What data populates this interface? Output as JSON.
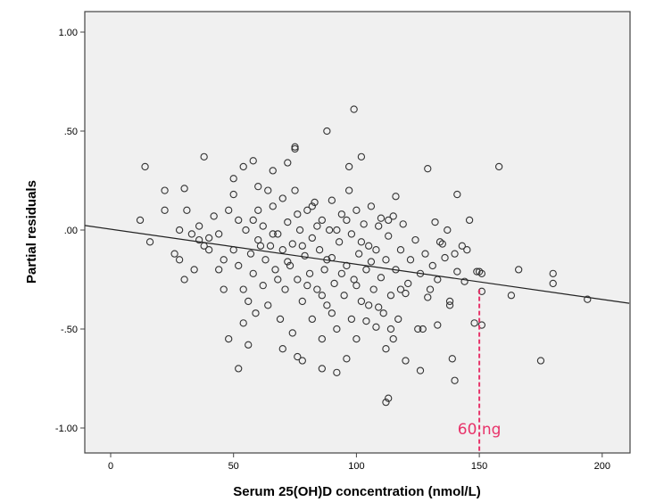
{
  "chart_data": {
    "type": "scatter",
    "title": "",
    "xlabel": "Serum 25(OH)D concentration (nmol/L)",
    "ylabel": "Partial residuals",
    "xlim": [
      -10.5,
      211
    ],
    "ylim": [
      -1.1,
      1.11
    ],
    "xticks": [
      0,
      50,
      100,
      150,
      200
    ],
    "xtick_labels": [
      "0",
      "50",
      "100",
      "150",
      "200"
    ],
    "yticks": [
      1.0,
      0.5,
      0.0,
      -0.5,
      -1.0
    ],
    "ytick_labels": [
      "1.00",
      ".50",
      ".00",
      "-.50",
      "-1.00"
    ],
    "grid": false,
    "regression_line": {
      "x": [
        -10.5,
        211
      ],
      "y": [
        0.023,
        -0.37
      ]
    },
    "annotation": {
      "label": "60 ng",
      "x": 150,
      "y_from": -0.3,
      "color": "#e8336a"
    },
    "marker_color": "#333333",
    "background": "#f0f0f0",
    "points": [
      [
        14,
        0.32
      ],
      [
        12,
        0.05
      ],
      [
        16,
        -0.06
      ],
      [
        38,
        0.37
      ],
      [
        22,
        0.2
      ],
      [
        22,
        0.1
      ],
      [
        30,
        0.21
      ],
      [
        28,
        0.0
      ],
      [
        34,
        -0.2
      ],
      [
        30,
        -0.25
      ],
      [
        26,
        -0.12
      ],
      [
        28,
        -0.15
      ],
      [
        36,
        -0.05
      ],
      [
        44,
        -0.02
      ],
      [
        48,
        -0.55
      ],
      [
        52,
        -0.7
      ],
      [
        54,
        -0.47
      ],
      [
        56,
        -0.58
      ],
      [
        58,
        0.35
      ],
      [
        50,
        0.26
      ],
      [
        54,
        0.32
      ],
      [
        60,
        0.22
      ],
      [
        66,
        0.3
      ],
      [
        75,
        0.42
      ],
      [
        75,
        0.41
      ],
      [
        88,
        0.5
      ],
      [
        99,
        0.61
      ],
      [
        102,
        0.37
      ],
      [
        97,
        0.32
      ],
      [
        72,
        0.34
      ],
      [
        86,
        -0.7
      ],
      [
        92,
        -0.72
      ],
      [
        78,
        -0.66
      ],
      [
        76,
        -0.64
      ],
      [
        112,
        -0.87
      ],
      [
        113,
        -0.85
      ],
      [
        120,
        -0.66
      ],
      [
        126,
        -0.71
      ],
      [
        140,
        -0.76
      ],
      [
        139,
        -0.65
      ],
      [
        112,
        -0.6
      ],
      [
        129,
        0.31
      ],
      [
        158,
        0.32
      ],
      [
        141,
        0.18
      ],
      [
        166,
        -0.2
      ],
      [
        163,
        -0.33
      ],
      [
        180,
        -0.22
      ],
      [
        180,
        -0.27
      ],
      [
        194,
        -0.35
      ],
      [
        175,
        -0.66
      ],
      [
        148,
        -0.47
      ],
      [
        151,
        -0.48
      ],
      [
        151,
        -0.31
      ],
      [
        150,
        -0.21
      ],
      [
        149,
        -0.21
      ],
      [
        151,
        -0.22
      ],
      [
        144,
        -0.26
      ],
      [
        127,
        -0.5
      ],
      [
        125,
        -0.5
      ],
      [
        108,
        -0.49
      ],
      [
        115,
        -0.55
      ],
      [
        100,
        -0.55
      ],
      [
        116,
        0.17
      ],
      [
        113,
        0.05
      ],
      [
        132,
        0.04
      ],
      [
        137,
        0.0
      ],
      [
        146,
        0.05
      ],
      [
        143,
        -0.08
      ],
      [
        140,
        -0.12
      ],
      [
        135,
        -0.07
      ],
      [
        138,
        -0.38
      ],
      [
        138,
        -0.36
      ],
      [
        133,
        -0.48
      ],
      [
        130,
        -0.3
      ],
      [
        120,
        -0.32
      ],
      [
        133,
        -0.25
      ],
      [
        105,
        -0.38
      ],
      [
        109,
        -0.39
      ],
      [
        31,
        0.1
      ],
      [
        33,
        -0.02
      ],
      [
        38,
        -0.08
      ],
      [
        40,
        -0.04
      ],
      [
        42,
        0.07
      ],
      [
        46,
        -0.15
      ],
      [
        44,
        -0.2
      ],
      [
        48,
        0.1
      ],
      [
        50,
        -0.1
      ],
      [
        52,
        -0.18
      ],
      [
        52,
        0.05
      ],
      [
        54,
        -0.3
      ],
      [
        55,
        0.0
      ],
      [
        57,
        -0.12
      ],
      [
        58,
        -0.22
      ],
      [
        60,
        -0.05
      ],
      [
        60,
        0.1
      ],
      [
        62,
        -0.28
      ],
      [
        62,
        0.02
      ],
      [
        63,
        -0.15
      ],
      [
        64,
        -0.38
      ],
      [
        65,
        -0.08
      ],
      [
        66,
        0.12
      ],
      [
        67,
        -0.2
      ],
      [
        68,
        -0.02
      ],
      [
        69,
        -0.45
      ],
      [
        70,
        -0.1
      ],
      [
        70,
        0.16
      ],
      [
        71,
        -0.3
      ],
      [
        72,
        0.04
      ],
      [
        73,
        -0.18
      ],
      [
        74,
        -0.52
      ],
      [
        74,
        -0.07
      ],
      [
        75,
        0.2
      ],
      [
        76,
        -0.25
      ],
      [
        77,
        0.0
      ],
      [
        78,
        -0.36
      ],
      [
        79,
        -0.13
      ],
      [
        80,
        0.1
      ],
      [
        81,
        -0.22
      ],
      [
        82,
        -0.45
      ],
      [
        82,
        -0.04
      ],
      [
        83,
        0.14
      ],
      [
        84,
        -0.3
      ],
      [
        85,
        -0.1
      ],
      [
        86,
        0.05
      ],
      [
        86,
        -0.55
      ],
      [
        87,
        -0.2
      ],
      [
        88,
        -0.38
      ],
      [
        89,
        0.0
      ],
      [
        90,
        -0.14
      ],
      [
        90,
        0.15
      ],
      [
        91,
        -0.27
      ],
      [
        92,
        -0.5
      ],
      [
        93,
        -0.06
      ],
      [
        94,
        0.08
      ],
      [
        95,
        -0.33
      ],
      [
        96,
        -0.18
      ],
      [
        97,
        0.2
      ],
      [
        98,
        -0.45
      ],
      [
        98,
        -0.02
      ],
      [
        99,
        -0.25
      ],
      [
        100,
        0.1
      ],
      [
        101,
        -0.12
      ],
      [
        102,
        -0.36
      ],
      [
        103,
        0.03
      ],
      [
        104,
        -0.2
      ],
      [
        105,
        -0.08
      ],
      [
        106,
        0.12
      ],
      [
        107,
        -0.3
      ],
      [
        108,
        -0.1
      ],
      [
        109,
        0.02
      ],
      [
        110,
        -0.24
      ],
      [
        111,
        -0.42
      ],
      [
        112,
        -0.15
      ],
      [
        113,
        -0.03
      ],
      [
        114,
        -0.33
      ],
      [
        115,
        0.07
      ],
      [
        116,
        -0.2
      ],
      [
        117,
        -0.45
      ],
      [
        118,
        -0.1
      ],
      [
        119,
        0.03
      ],
      [
        121,
        -0.27
      ],
      [
        122,
        -0.15
      ],
      [
        124,
        -0.05
      ],
      [
        126,
        -0.22
      ],
      [
        128,
        -0.12
      ],
      [
        129,
        -0.34
      ],
      [
        131,
        -0.18
      ],
      [
        134,
        -0.06
      ],
      [
        136,
        -0.14
      ],
      [
        141,
        -0.21
      ],
      [
        145,
        -0.1
      ],
      [
        56,
        -0.36
      ],
      [
        58,
        0.05
      ],
      [
        61,
        -0.08
      ],
      [
        64,
        0.2
      ],
      [
        66,
        -0.02
      ],
      [
        68,
        -0.25
      ],
      [
        70,
        -0.6
      ],
      [
        72,
        -0.16
      ],
      [
        76,
        0.08
      ],
      [
        78,
        -0.08
      ],
      [
        80,
        -0.28
      ],
      [
        84,
        0.02
      ],
      [
        88,
        -0.15
      ],
      [
        92,
        0.0
      ],
      [
        94,
        -0.22
      ],
      [
        96,
        -0.65
      ],
      [
        100,
        -0.28
      ],
      [
        104,
        -0.46
      ],
      [
        106,
        -0.16
      ],
      [
        110,
        0.06
      ],
      [
        114,
        -0.5
      ],
      [
        118,
        -0.3
      ],
      [
        46,
        -0.3
      ],
      [
        40,
        -0.1
      ],
      [
        36,
        0.02
      ],
      [
        50,
        0.18
      ],
      [
        59,
        -0.42
      ],
      [
        82,
        0.12
      ],
      [
        86,
        -0.33
      ],
      [
        90,
        -0.42
      ],
      [
        96,
        0.05
      ],
      [
        102,
        -0.06
      ]
    ]
  }
}
